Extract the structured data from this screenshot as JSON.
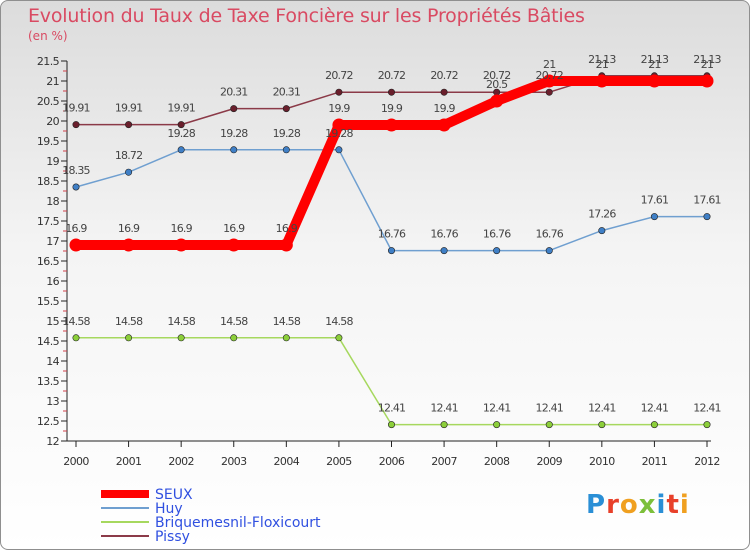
{
  "header": {
    "title": "Evolution du Taux de Taxe Foncière sur les Propriétés Bâties",
    "unit": "(en %)"
  },
  "logo": {
    "text": "Proxiti",
    "letters": [
      "P",
      "r",
      "o",
      "x",
      "i",
      "t",
      "i"
    ],
    "colors": [
      "#2a8fd6",
      "#e8402a",
      "#f0a020",
      "#7cbf3a",
      "#2a8fd6",
      "#e8402a",
      "#f0a020"
    ]
  },
  "chart_data": {
    "type": "line",
    "title": "Evolution du Taux de Taxe Foncière sur les Propriétés Bâties",
    "ylabel": "(en %)",
    "ylim": [
      12,
      21.5
    ],
    "yticks": [
      12,
      12.5,
      13,
      13.5,
      14,
      14.5,
      15,
      15.5,
      16,
      16.5,
      17,
      17.5,
      18,
      18.5,
      19,
      19.5,
      20,
      20.5,
      21,
      21.5
    ],
    "x": [
      "2000",
      "2001",
      "2002",
      "2003",
      "2004",
      "2005",
      "2006",
      "2007",
      "2008",
      "2009",
      "2010",
      "2011",
      "2012"
    ],
    "grid": false,
    "legend_position": "bottom-left",
    "series": [
      {
        "name": "SEUX",
        "color": "#ff0000",
        "bold": true,
        "values": [
          16.9,
          16.9,
          16.9,
          16.9,
          16.9,
          19.9,
          19.9,
          19.9,
          20.5,
          21,
          21,
          21,
          21
        ],
        "labels": [
          "16.9",
          "16.9",
          "16.9",
          "16.9",
          "16.9",
          "19.9",
          "19.9",
          "19.9",
          "20.5",
          "21",
          "21",
          "21",
          "21"
        ]
      },
      {
        "name": "Huy",
        "color": "#6f9fd0",
        "marker": "#3f7fc6",
        "values": [
          18.35,
          18.72,
          19.28,
          19.28,
          19.28,
          19.28,
          16.76,
          16.76,
          16.76,
          16.76,
          17.26,
          17.61,
          17.61
        ],
        "labels": [
          "18.35",
          "18.72",
          "19.28",
          "19.28",
          "19.28",
          "19.28",
          "16.76",
          "16.76",
          "16.76",
          "16.76",
          "17.26",
          "17.61",
          "17.61"
        ]
      },
      {
        "name": "Briquemesnil-Floxicourt",
        "color": "#a6d85e",
        "marker": "#8ccf3a",
        "values": [
          14.58,
          14.58,
          14.58,
          14.58,
          14.58,
          14.58,
          12.41,
          12.41,
          12.41,
          12.41,
          12.41,
          12.41,
          12.41
        ],
        "labels": [
          "14.58",
          "14.58",
          "14.58",
          "14.58",
          "14.58",
          "14.58",
          "12.41",
          "12.41",
          "12.41",
          "12.41",
          "12.41",
          "12.41",
          "12.41"
        ]
      },
      {
        "name": "Pissy",
        "color": "#8b3a48",
        "marker": "#6a1f2c",
        "values": [
          19.91,
          19.91,
          19.91,
          20.31,
          20.31,
          20.72,
          20.72,
          20.72,
          20.72,
          20.72,
          21.13,
          21.13,
          21.13
        ],
        "labels": [
          "19.91",
          "19.91",
          "19.91",
          "20.31",
          "20.31",
          "20.72",
          "20.72",
          "20.72",
          "20.72",
          "20.72",
          "21.13",
          "21.13",
          "21.13"
        ]
      }
    ]
  }
}
